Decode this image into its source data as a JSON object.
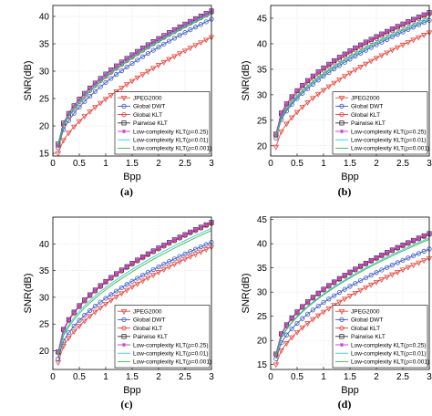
{
  "chart_data": [
    {
      "panel_label": "(a)",
      "type": "line",
      "xlabel": "Bpp",
      "ylabel": "SNR(dB)",
      "xlim": [
        0,
        3
      ],
      "ylim": [
        14.5,
        42
      ],
      "xticks": [
        0,
        0.5,
        1,
        1.5,
        2,
        2.5,
        3
      ],
      "yticks": [
        15,
        20,
        25,
        30,
        35,
        40
      ],
      "grid": true,
      "legend_position": "bottom-right",
      "series": [
        {
          "name": "JPEG2000",
          "color": "#e8473e",
          "marker": "triangle-down",
          "start": 15.0,
          "end": 36.2,
          "curve": 0.65
        },
        {
          "name": "Global DWT",
          "color": "#3b58c9",
          "marker": "circle",
          "start": 16.0,
          "end": 39.5,
          "curve": 0.58
        },
        {
          "name": "Global KLT",
          "color": "#e23b3b",
          "marker": "circle",
          "start": 16.4,
          "end": 40.7,
          "curve": 0.56
        },
        {
          "name": "Pairwise KLT",
          "color": "#333333",
          "marker": "square",
          "start": 16.7,
          "end": 41.0,
          "curve": 0.55
        },
        {
          "name": "Low-complexity KLT(ρ=0.25)",
          "color": "#c43fd0",
          "marker": "star",
          "start": 16.6,
          "end": 41.0,
          "curve": 0.55
        },
        {
          "name": "Low-complexity KLT(ρ=0.01)",
          "color": "#33c8e0",
          "marker": "none",
          "start": 16.4,
          "end": 40.6,
          "curve": 0.56
        },
        {
          "name": "Low-complexity KLT(ρ=0.001)",
          "color": "#33b84a",
          "marker": "none",
          "start": 16.3,
          "end": 40.4,
          "curve": 0.56
        }
      ]
    },
    {
      "panel_label": "(b)",
      "type": "line",
      "xlabel": "Bpp",
      "ylabel": "SNR(dB)",
      "xlim": [
        0,
        3
      ],
      "ylim": [
        18,
        47.5
      ],
      "xticks": [
        0,
        0.5,
        1,
        1.5,
        2,
        2.5,
        3
      ],
      "yticks": [
        20,
        25,
        30,
        35,
        40,
        45
      ],
      "grid": true,
      "legend_position": "bottom-right",
      "series": [
        {
          "name": "JPEG2000",
          "color": "#e8473e",
          "marker": "triangle-down",
          "start": 19.8,
          "end": 42.2,
          "curve": 0.6
        },
        {
          "name": "Global DWT",
          "color": "#3b58c9",
          "marker": "circle",
          "start": 21.5,
          "end": 44.6,
          "curve": 0.55
        },
        {
          "name": "Global KLT",
          "color": "#e23b3b",
          "marker": "circle",
          "start": 22.0,
          "end": 45.8,
          "curve": 0.53
        },
        {
          "name": "Pairwise KLT",
          "color": "#333333",
          "marker": "square",
          "start": 22.3,
          "end": 46.1,
          "curve": 0.52
        },
        {
          "name": "Low-complexity KLT(ρ=0.25)",
          "color": "#c43fd0",
          "marker": "star",
          "start": 22.3,
          "end": 46.1,
          "curve": 0.52
        },
        {
          "name": "Low-complexity KLT(ρ=0.01)",
          "color": "#33c8e0",
          "marker": "none",
          "start": 21.8,
          "end": 45.2,
          "curve": 0.54
        },
        {
          "name": "Low-complexity KLT(ρ=0.001)",
          "color": "#33b84a",
          "marker": "none",
          "start": 21.6,
          "end": 44.9,
          "curve": 0.54
        }
      ]
    },
    {
      "panel_label": "(c)",
      "type": "line",
      "xlabel": "Bpp",
      "ylabel": "SNR(dB)",
      "xlim": [
        0,
        3
      ],
      "ylim": [
        16.5,
        45
      ],
      "xticks": [
        0,
        0.5,
        1,
        1.5,
        2,
        2.5,
        3
      ],
      "yticks": [
        20,
        25,
        30,
        35,
        40
      ],
      "grid": true,
      "legend_position": "bottom-right",
      "series": [
        {
          "name": "JPEG2000",
          "color": "#e8473e",
          "marker": "triangle-down",
          "start": 17.8,
          "end": 39.4,
          "curve": 0.58
        },
        {
          "name": "Global DWT",
          "color": "#3b58c9",
          "marker": "circle",
          "start": 18.5,
          "end": 40.3,
          "curve": 0.56
        },
        {
          "name": "Global KLT",
          "color": "#e23b3b",
          "marker": "circle",
          "start": 19.6,
          "end": 43.8,
          "curve": 0.52
        },
        {
          "name": "Pairwise KLT",
          "color": "#333333",
          "marker": "square",
          "start": 19.8,
          "end": 44.0,
          "curve": 0.52
        },
        {
          "name": "Low-complexity KLT(ρ=0.25)",
          "color": "#c43fd0",
          "marker": "star",
          "start": 19.8,
          "end": 44.0,
          "curve": 0.52
        },
        {
          "name": "Low-complexity KLT(ρ=0.01)",
          "color": "#33c8e0",
          "marker": "none",
          "start": 19.3,
          "end": 42.9,
          "curve": 0.54
        },
        {
          "name": "Low-complexity KLT(ρ=0.001)",
          "color": "#33b84a",
          "marker": "none",
          "start": 19.1,
          "end": 42.5,
          "curve": 0.55
        }
      ]
    },
    {
      "panel_label": "(d)",
      "type": "line",
      "xlabel": "Bpp",
      "ylabel": "SNR(dB)",
      "xlim": [
        0,
        3
      ],
      "ylim": [
        14,
        45.5
      ],
      "xticks": [
        0,
        0.5,
        1,
        1.5,
        2,
        2.5,
        3
      ],
      "yticks": [
        15,
        20,
        25,
        30,
        35,
        40,
        45
      ],
      "grid": true,
      "legend_position": "bottom-right",
      "series": [
        {
          "name": "JPEG2000",
          "color": "#e8473e",
          "marker": "triangle-down",
          "start": 15.0,
          "end": 37.0,
          "curve": 0.6
        },
        {
          "name": "Global DWT",
          "color": "#3b58c9",
          "marker": "circle",
          "start": 16.2,
          "end": 38.9,
          "curve": 0.57
        },
        {
          "name": "Global KLT",
          "color": "#e23b3b",
          "marker": "circle",
          "start": 17.0,
          "end": 41.9,
          "curve": 0.53
        },
        {
          "name": "Pairwise KLT",
          "color": "#333333",
          "marker": "square",
          "start": 17.2,
          "end": 42.1,
          "curve": 0.53
        },
        {
          "name": "Low-complexity KLT(ρ=0.25)",
          "color": "#c43fd0",
          "marker": "star",
          "start": 17.2,
          "end": 42.1,
          "curve": 0.53
        },
        {
          "name": "Low-complexity KLT(ρ=0.01)",
          "color": "#33c8e0",
          "marker": "none",
          "start": 16.8,
          "end": 41.2,
          "curve": 0.55
        },
        {
          "name": "Low-complexity KLT(ρ=0.001)",
          "color": "#33b84a",
          "marker": "none",
          "start": 16.7,
          "end": 40.9,
          "curve": 0.55
        }
      ]
    }
  ]
}
